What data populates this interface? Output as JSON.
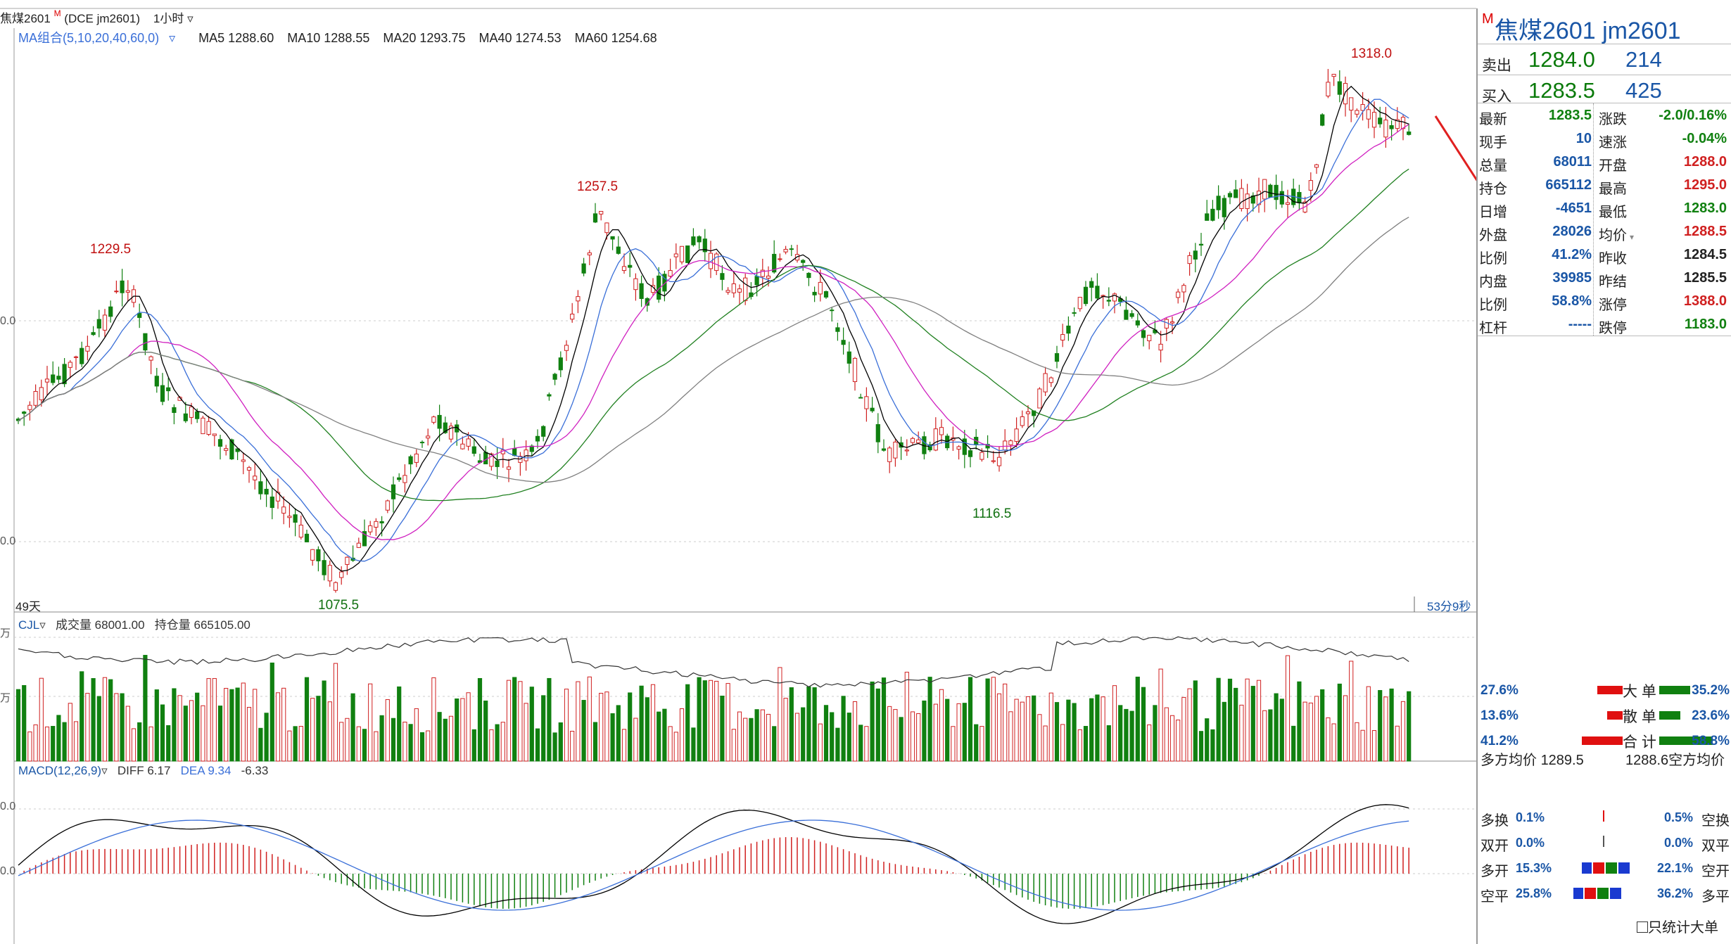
{
  "topbar": {
    "symbol": "焦煤2601",
    "code": "(DCE jm2601)",
    "period": "1小时",
    "dropdown_arrow": "chevron-down-icon"
  },
  "ma_legend": {
    "group": "MA组合(5,10,20,40,60,0)",
    "items": [
      {
        "label": "MA5 1288.60",
        "color": "#000000"
      },
      {
        "label": "MA10 1288.55",
        "color": "#3a6fd8"
      },
      {
        "label": "MA20 1293.75",
        "color": "#d020c0"
      },
      {
        "label": "MA40 1274.53",
        "color": "#208020"
      },
      {
        "label": "MA60 1254.68",
        "color": "#808080"
      }
    ]
  },
  "price_labels": {
    "p1": "1229.5",
    "p2": "1257.5",
    "p3": "1318.0",
    "p4": "1116.5",
    "p5": "1075.5"
  },
  "price_axis": {
    "t1": "0.0",
    "t2": "0.0"
  },
  "bottom_info": {
    "days": "49天",
    "timer": "53分9秒"
  },
  "vol_legend": {
    "name": "CJL",
    "vol": "成交量 68001.00",
    "oi": "持仓量 665105.00",
    "axis_t1": "万",
    "axis_t2": "万"
  },
  "macd_legend": {
    "name": "MACD(12,26,9)",
    "diff": "DIFF 6.17",
    "dea": "DEA 9.34",
    "macd": "-6.33",
    "axis_t1": "0.0",
    "axis_t2": "0.0"
  },
  "colors": {
    "up": "#d02020",
    "down": "#108010",
    "blue": "#1a56a6"
  },
  "panel": {
    "m_icon": "M",
    "title": "焦煤2601  jm2601",
    "sell": {
      "label": "卖出",
      "price": "1284.0",
      "vol": "214"
    },
    "buy": {
      "label": "买入",
      "price": "1283.5",
      "vol": "425"
    },
    "quote": [
      {
        "l1": "最新",
        "v1": "1283.5",
        "c1": "#108010",
        "l2": "涨跌",
        "v2": "-2.0/0.16%",
        "c2": "#108010"
      },
      {
        "l1": "现手",
        "v1": "10",
        "c1": "#1a56a6",
        "l2": "速涨",
        "v2": "-0.04%",
        "c2": "#108010"
      },
      {
        "l1": "总量",
        "v1": "68011",
        "c1": "#1a56a6",
        "l2": "开盘",
        "v2": "1288.0",
        "c2": "#d02020"
      },
      {
        "l1": "持仓",
        "v1": "665112",
        "c1": "#1a56a6",
        "l2": "最高",
        "v2": "1295.0",
        "c2": "#d02020"
      },
      {
        "l1": "日增",
        "v1": "-4651",
        "c1": "#1a56a6",
        "l2": "最低",
        "v2": "1283.0",
        "c2": "#108010"
      },
      {
        "l1": "外盘",
        "v1": "28026",
        "c1": "#1a56a6",
        "l2": "均价",
        "v2": "1288.5",
        "c2": "#d02020"
      },
      {
        "l1": "比例",
        "v1": "41.2%",
        "c1": "#1a56a6",
        "l2": "昨收",
        "v2": "1284.5",
        "c2": "#222222"
      },
      {
        "l1": "内盘",
        "v1": "39985",
        "c1": "#1a56a6",
        "l2": "昨结",
        "v2": "1285.5",
        "c2": "#222222"
      },
      {
        "l1": "比例",
        "v1": "58.8%",
        "c1": "#1a56a6",
        "l2": "涨停",
        "v2": "1388.0",
        "c2": "#d02020"
      },
      {
        "l1": "杠杆",
        "v1": "-----",
        "c1": "#1a56a6",
        "l2": "跌停",
        "v2": "1183.0",
        "c2": "#108010"
      }
    ],
    "flow": [
      {
        "left": "27.6%",
        "label": "大 单",
        "right": "35.2%"
      },
      {
        "left": "13.6%",
        "label": "散 单",
        "right": "23.6%"
      },
      {
        "left": "41.2%",
        "label": "合 计",
        "right": "58.8%"
      }
    ],
    "avg": {
      "long_label": "多方均价",
      "long_val": "1289.5",
      "short_val": "1288.6",
      "short_label": "空方均价"
    },
    "stats": [
      {
        "l": "多换",
        "lv": "0.1%",
        "rv": "0.5%",
        "r": "空换"
      },
      {
        "l": "双开",
        "lv": "0.0%",
        "rv": "0.0%",
        "r": "双平"
      },
      {
        "l": "多开",
        "lv": "15.3%",
        "rv": "22.1%",
        "r": "空开"
      },
      {
        "l": "空平",
        "lv": "25.8%",
        "rv": "36.2%",
        "r": "多平"
      }
    ],
    "checkbox_label": "只统计大单"
  }
}
